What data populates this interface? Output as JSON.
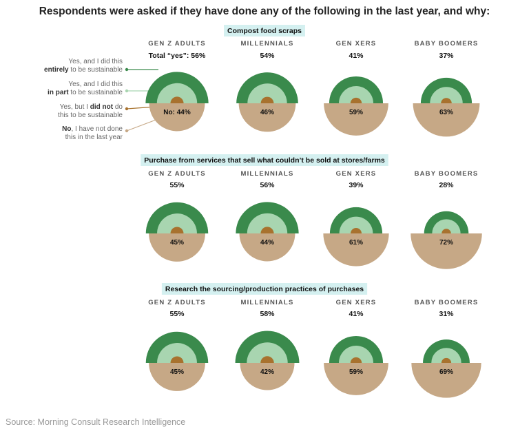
{
  "title": "Respondents were asked if they have done any of the following in the last year, and why:",
  "source": "Source: Morning Consult Research Intelligence",
  "colors": {
    "entirely": "#3a8a4c",
    "in_part": "#a8d5b0",
    "did_not": "#a8722e",
    "no": "#c6a886",
    "banner": "#d4f0f0"
  },
  "legend": [
    {
      "key": "entirely",
      "pre1": "Yes, and I did this",
      "bold": "entirely",
      "post": " to be sustainable"
    },
    {
      "key": "in_part",
      "pre1": "Yes, and I did this",
      "bold": "in part",
      "post": " to be sustainable"
    },
    {
      "key": "did_not",
      "pre": "Yes, but I ",
      "bold": "did not",
      "post": " do",
      "line2": "this to be sustainable"
    },
    {
      "key": "no",
      "bold": "No",
      "post": ", I have not done",
      "line2": "this in the last year"
    }
  ],
  "generations": [
    "GEN Z ADULTS",
    "MILLENNIALS",
    "GEN XERS",
    "BABY BOOMERS"
  ],
  "chart_data": [
    {
      "type": "nested semicircle",
      "activity": "Compost food scraps",
      "yes_labels": [
        "Total “yes”: 56%",
        "54%",
        "41%",
        "37%"
      ],
      "no_labels": [
        "No: 44%",
        "46%",
        "59%",
        "63%"
      ],
      "yes_pct": [
        56,
        54,
        41,
        37
      ],
      "no_pct": [
        44,
        46,
        59,
        63
      ]
    },
    {
      "type": "nested semicircle",
      "activity": "Purchase from services that sell what couldn’t be sold at stores/farms",
      "yes_labels": [
        "55%",
        "56%",
        "39%",
        "28%"
      ],
      "no_labels": [
        "45%",
        "44%",
        "61%",
        "72%"
      ],
      "yes_pct": [
        55,
        56,
        39,
        28
      ],
      "no_pct": [
        45,
        44,
        61,
        72
      ]
    },
    {
      "type": "nested semicircle",
      "activity": "Research the sourcing/production practices of purchases",
      "yes_labels": [
        "55%",
        "58%",
        "41%",
        "31%"
      ],
      "no_labels": [
        "45%",
        "42%",
        "59%",
        "69%"
      ],
      "yes_pct": [
        55,
        58,
        41,
        31
      ],
      "no_pct": [
        45,
        42,
        59,
        69
      ]
    }
  ]
}
